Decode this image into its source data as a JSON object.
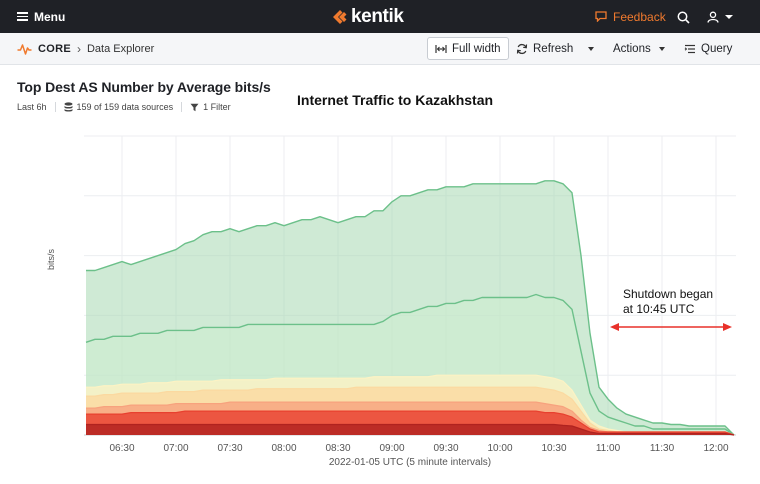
{
  "topbar": {
    "menu_label": "Menu",
    "logo_text": "kentik",
    "feedback_label": "Feedback",
    "brand_color": "#f07a2e",
    "icons": [
      "menu-icon",
      "kentik-logo-icon",
      "feedback-icon",
      "search-icon",
      "user-icon",
      "chevron-down-icon"
    ]
  },
  "subbar": {
    "breadcrumb_root": "CORE",
    "breadcrumb_page": "Data Explorer",
    "full_width_label": "Full width",
    "refresh_label": "Refresh",
    "actions_label": "Actions",
    "query_label": "Query"
  },
  "panel": {
    "title": "Top Dest AS Number by Average bits/s",
    "time_range": "Last 6h",
    "data_sources": "159 of 159 data sources",
    "filters": "1 Filter"
  },
  "annotation": {
    "chart_title": "Internet Traffic to Kazakhstan",
    "line1": "Shutdown began",
    "line2": "at 10:45 UTC",
    "arrow_color": "#e8312a"
  },
  "chart_data": {
    "type": "area",
    "title": "Internet Traffic to Kazakhstan",
    "xlabel": "2022-01-05 UTC (5 minute intervals)",
    "ylabel": "bits/s",
    "x_tick_labels": [
      "06:30",
      "07:00",
      "07:30",
      "08:00",
      "08:30",
      "09:00",
      "09:30",
      "10:00",
      "10:30",
      "11:00",
      "11:30",
      "12:00"
    ],
    "x": [
      "06:10",
      "06:15",
      "06:20",
      "06:25",
      "06:30",
      "06:35",
      "06:40",
      "06:45",
      "06:50",
      "06:55",
      "07:00",
      "07:05",
      "07:10",
      "07:15",
      "07:20",
      "07:25",
      "07:30",
      "07:35",
      "07:40",
      "07:45",
      "07:50",
      "07:55",
      "08:00",
      "08:05",
      "08:10",
      "08:15",
      "08:20",
      "08:25",
      "08:30",
      "08:35",
      "08:40",
      "08:45",
      "08:50",
      "08:55",
      "09:00",
      "09:05",
      "09:10",
      "09:15",
      "09:20",
      "09:25",
      "09:30",
      "09:35",
      "09:40",
      "09:45",
      "09:50",
      "09:55",
      "10:00",
      "10:05",
      "10:10",
      "10:15",
      "10:20",
      "10:25",
      "10:30",
      "10:35",
      "10:40",
      "10:45",
      "10:50",
      "10:55",
      "11:00",
      "11:05",
      "11:10",
      "11:15",
      "11:20",
      "11:25",
      "11:30",
      "11:35",
      "11:40",
      "11:45",
      "11:50",
      "11:55",
      "12:00",
      "12:05",
      "12:10"
    ],
    "y_unit_note": "values are relative (no y tick labels shown)",
    "ylim": [
      0,
      100
    ],
    "grid": true,
    "series": [
      {
        "color": "#a8d9b2",
        "values": [
          55,
          55,
          56,
          57,
          58,
          57,
          58,
          59,
          60,
          61,
          62,
          64,
          65,
          67,
          68,
          68,
          69,
          68,
          69,
          70,
          70,
          71,
          70,
          71,
          72,
          72,
          73,
          72,
          71,
          72,
          73,
          73,
          75,
          75,
          78,
          80,
          80,
          81,
          82,
          82,
          83,
          83,
          83,
          84,
          84,
          84,
          84,
          84,
          84,
          84,
          84,
          85,
          85,
          84,
          81,
          60,
          34,
          16,
          12,
          9,
          7,
          6,
          5,
          4,
          4,
          3.5,
          3.5,
          3,
          3,
          3,
          3,
          3,
          0
        ]
      },
      {
        "color": "#cdeccf",
        "values": [
          31,
          32,
          32,
          33,
          33,
          33,
          34,
          34,
          34,
          35,
          35,
          35,
          35,
          36,
          36,
          36,
          36,
          36,
          37,
          37,
          37,
          37,
          37,
          37,
          37,
          37,
          37,
          37,
          37,
          37,
          37,
          37,
          37,
          38,
          40,
          41,
          41,
          42,
          43,
          43,
          44,
          44,
          45,
          45,
          46,
          46,
          46,
          46,
          46,
          46,
          47,
          46,
          46,
          45,
          42,
          28,
          14,
          8,
          6,
          5,
          4,
          3,
          3,
          2,
          2,
          2,
          2,
          2,
          2,
          2,
          2,
          2,
          0
        ]
      },
      {
        "color": "#fdf3c4",
        "values": [
          16,
          16,
          16.5,
          16.5,
          17,
          17,
          17,
          17.5,
          17.5,
          17.5,
          18,
          18,
          18,
          18,
          18,
          18.5,
          18.5,
          18.5,
          18.5,
          18.5,
          18.5,
          19,
          19,
          19,
          19,
          19,
          19,
          19,
          19,
          19,
          19,
          19,
          19.5,
          19.5,
          19.5,
          19.5,
          19.5,
          19.5,
          19.5,
          20,
          20,
          20,
          20,
          20,
          20,
          20,
          20,
          20,
          20,
          20,
          20,
          19.5,
          19,
          18,
          15,
          10,
          5,
          3,
          2,
          1.5,
          1,
          1,
          1,
          1,
          1,
          1,
          1,
          1,
          1,
          1,
          1,
          1,
          0
        ]
      },
      {
        "color": "#fbd9a0",
        "values": [
          13,
          13,
          13.5,
          13.5,
          14,
          14,
          14,
          14,
          14,
          14.5,
          14.5,
          14.5,
          14.5,
          15,
          15,
          15,
          15,
          15,
          15,
          15.5,
          15.5,
          15.5,
          15.5,
          15.5,
          15.5,
          15.5,
          15.5,
          15.5,
          15.5,
          15.5,
          16,
          16,
          16,
          16,
          16,
          16,
          16,
          16,
          16,
          16,
          16,
          16,
          16,
          16,
          16,
          16,
          16,
          16,
          16,
          16,
          16,
          15.5,
          15,
          14,
          12,
          8,
          4,
          2,
          1.5,
          1,
          1,
          1,
          1,
          1,
          1,
          1,
          1,
          1,
          1,
          1,
          1,
          1,
          0
        ]
      },
      {
        "color": "#f7a27e",
        "values": [
          9,
          9,
          9.5,
          9.5,
          9.5,
          10,
          10,
          10,
          10,
          10,
          10.5,
          10.5,
          10.5,
          10.5,
          10.5,
          10.5,
          11,
          11,
          11,
          11,
          11,
          11,
          11,
          11,
          11,
          11,
          11,
          11,
          11,
          11,
          11,
          11,
          11,
          11,
          11,
          11,
          11,
          11,
          11,
          11,
          11,
          11,
          11,
          11,
          11,
          11,
          11,
          11,
          11,
          11,
          11,
          10.5,
          10,
          9.5,
          8,
          5,
          2.5,
          1.5,
          1,
          1,
          1,
          1,
          1,
          1,
          1,
          1,
          1,
          1,
          1,
          1,
          1,
          1,
          0
        ]
      },
      {
        "color": "#e8402f",
        "values": [
          7,
          7,
          7,
          7,
          7,
          7.5,
          7.5,
          7.5,
          7.5,
          7.5,
          7.5,
          8,
          8,
          8,
          8,
          8,
          8,
          8,
          8,
          8,
          8,
          8,
          8,
          8,
          8,
          8,
          8,
          8,
          8,
          8,
          8,
          8,
          8,
          8,
          8,
          8,
          8,
          8,
          8,
          8,
          8,
          8,
          8,
          8,
          8,
          8,
          8,
          8,
          8,
          8,
          8,
          7.5,
          7.5,
          7,
          6,
          4,
          2,
          1,
          1,
          1,
          1,
          1,
          1,
          1,
          1,
          1,
          1,
          1,
          1,
          1,
          1,
          1,
          0
        ]
      },
      {
        "color": "#b0221f",
        "values": [
          3.5,
          3.5,
          3.5,
          3.5,
          3.5,
          3.5,
          3.5,
          3.5,
          3.5,
          3.5,
          3.5,
          3.5,
          3.5,
          3.5,
          3.5,
          3.5,
          3.5,
          3.5,
          3.5,
          3.5,
          3.5,
          3.5,
          3.5,
          3.5,
          3.5,
          3.5,
          3.5,
          3.5,
          3.5,
          3.5,
          3.5,
          3.5,
          3.5,
          3.5,
          3.5,
          3.5,
          3.5,
          3.5,
          3.5,
          3.5,
          3.5,
          3.5,
          3.5,
          3.5,
          3.5,
          3.5,
          3.5,
          3.5,
          3.5,
          3.5,
          3.5,
          3.5,
          3.5,
          3.2,
          3,
          2,
          1,
          0.5,
          0.5,
          0.5,
          0.5,
          0.5,
          0.5,
          0.5,
          0.5,
          0.5,
          0.5,
          0.5,
          0.5,
          0.5,
          0.5,
          0.5,
          0
        ]
      }
    ]
  }
}
